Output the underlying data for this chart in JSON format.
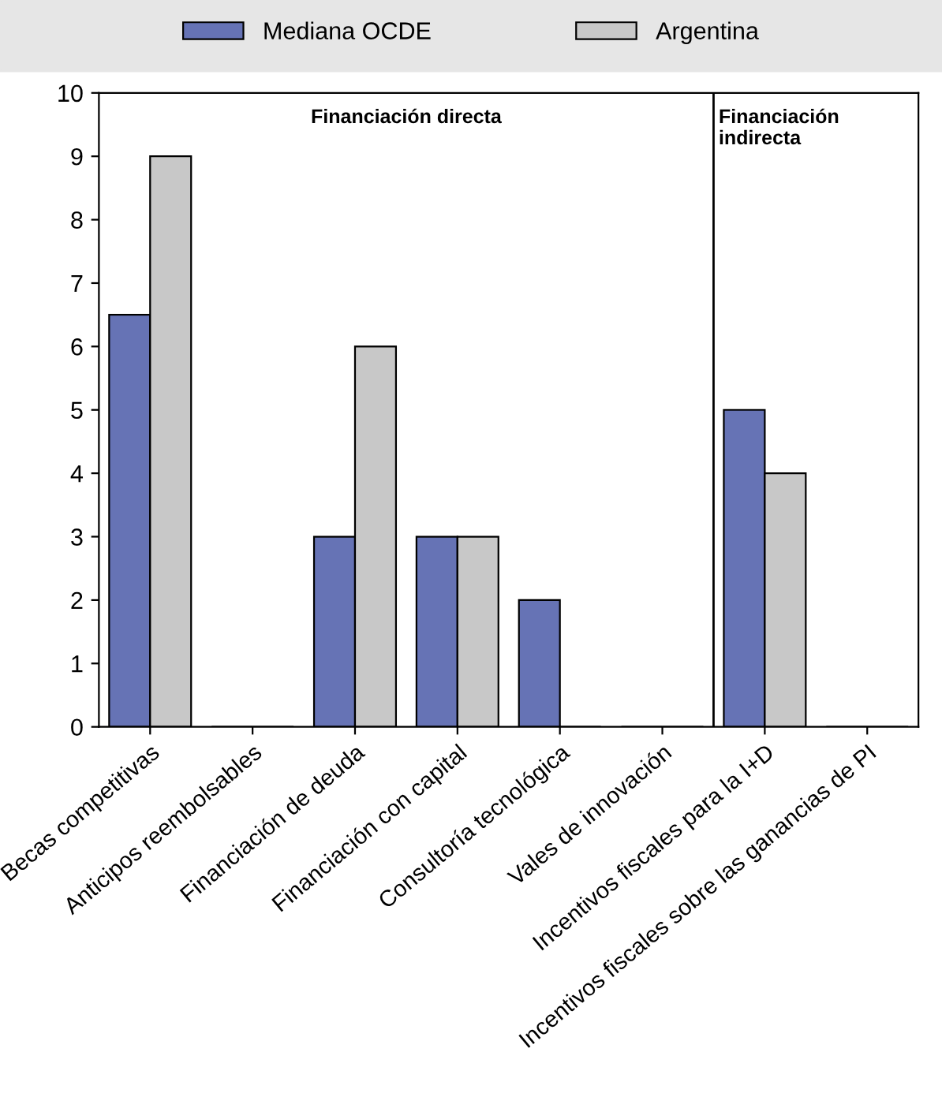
{
  "chart_data": {
    "type": "bar",
    "categories": [
      "Becas competitivas",
      "Anticipos reembolsables",
      "Financiación de deuda",
      "Financiación con capital",
      "Consultoría tecnológica",
      "Vales de innovación",
      "Incentivos fiscales para la I+D",
      "Incentivos fiscales sobre las ganancias de PI"
    ],
    "series": [
      {
        "name": "Mediana OCDE",
        "color": "#6673b5",
        "values": [
          6.5,
          0,
          3,
          3,
          2,
          0,
          5,
          0
        ]
      },
      {
        "name": "Argentina",
        "color": "#c8c8c8",
        "values": [
          9,
          0,
          6,
          3,
          0,
          0,
          4,
          0
        ]
      }
    ],
    "ylim": [
      0,
      10
    ],
    "yticks": [
      0,
      1,
      2,
      3,
      4,
      5,
      6,
      7,
      8,
      9,
      10
    ],
    "annotations": [
      "Financiación directa",
      "Financiación\nindirecta"
    ],
    "grid": false,
    "legend": "top"
  }
}
